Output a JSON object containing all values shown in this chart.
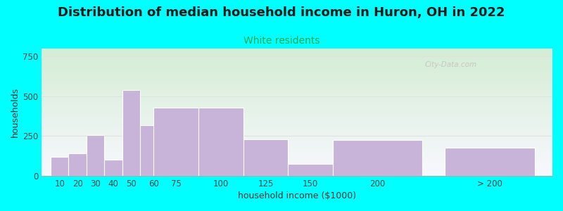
{
  "title": "Distribution of median household income in Huron, OH in 2022",
  "subtitle": "White residents",
  "xlabel": "household income ($1000)",
  "ylabel": "households",
  "bar_labels": [
    "10",
    "20",
    "30",
    "40",
    "50",
    "60",
    "75",
    "100",
    "125",
    "150",
    "200",
    "> 200"
  ],
  "bar_values": [
    120,
    140,
    255,
    100,
    540,
    320,
    430,
    430,
    230,
    75,
    225,
    175
  ],
  "bar_widths": [
    10,
    10,
    10,
    10,
    10,
    15,
    25,
    25,
    25,
    25,
    50,
    50
  ],
  "bar_lefts": [
    5,
    15,
    25,
    35,
    45,
    55,
    62.5,
    87.5,
    112.5,
    137.5,
    162.5,
    225
  ],
  "bar_color": "#c8b4d8",
  "bar_edge_color": "#ffffff",
  "yticks": [
    0,
    250,
    500,
    750
  ],
  "ylim": [
    0,
    800
  ],
  "xlim": [
    0,
    285
  ],
  "background_outer": "#00ffff",
  "background_inner_top": "#d4edd4",
  "background_inner_bottom": "#f8f8ff",
  "title_fontsize": 13,
  "subtitle_fontsize": 10,
  "subtitle_color": "#22aa55",
  "axis_label_fontsize": 9,
  "tick_fontsize": 8.5,
  "watermark_text": "City-Data.com",
  "watermark_color": "#bbbbbb",
  "grid_color": "#e0e0e0",
  "spine_color": "#aaaaaa"
}
